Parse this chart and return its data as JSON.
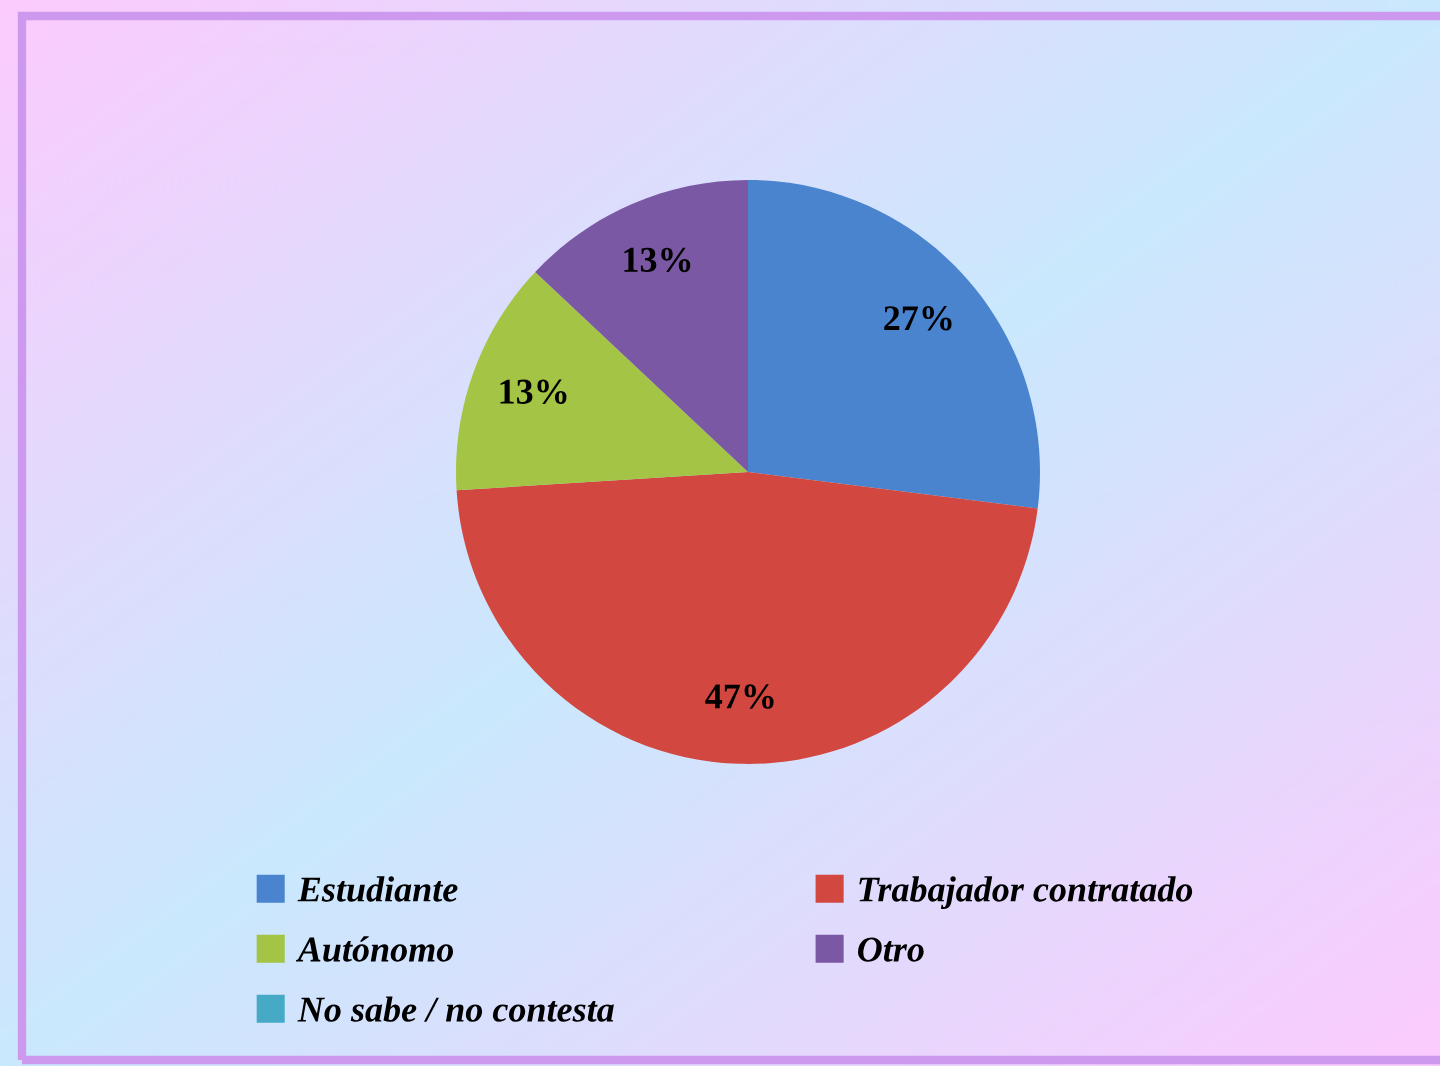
{
  "chart_data": {
    "type": "pie",
    "categories": [
      "Estudiante",
      "Trabajador contratado",
      "Autónomo",
      "Otro",
      "No sabe / no contesta"
    ],
    "values": [
      27,
      47,
      13,
      13,
      0
    ],
    "colors": [
      "#4a84cf",
      "#d2473f",
      "#a3c444",
      "#7b58a3",
      "#46a9c6"
    ],
    "value_labels": [
      "27%",
      "47%",
      "13%",
      "13%",
      null
    ],
    "legend": "bottom"
  }
}
